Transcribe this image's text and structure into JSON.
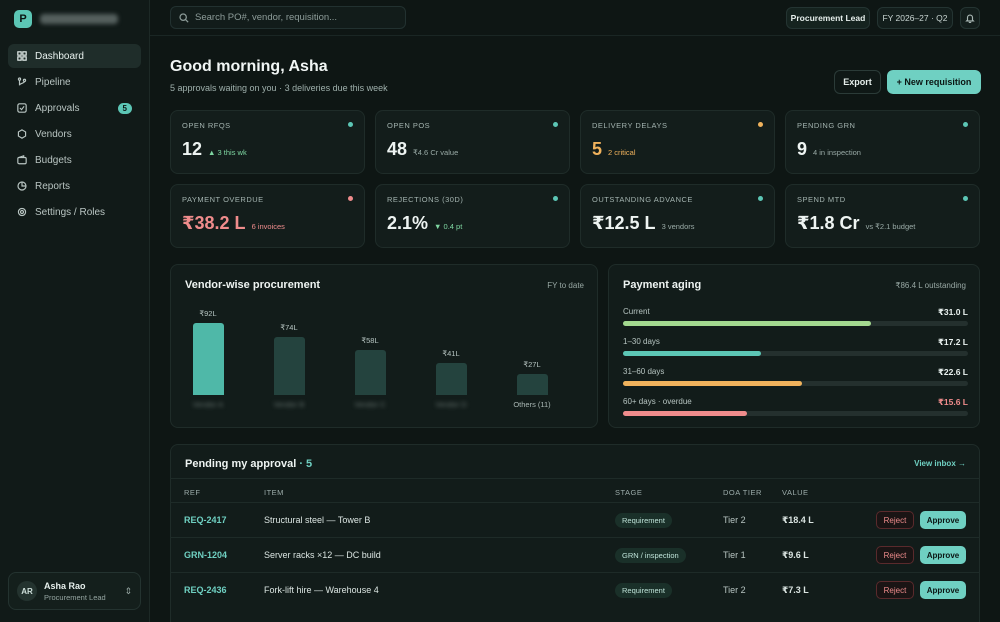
{
  "brand": {
    "logo_letter": "P",
    "name": "Procurement"
  },
  "sidebar": {
    "items": [
      {
        "label": "Dashboard",
        "icon": "grid-icon"
      },
      {
        "label": "Pipeline",
        "icon": "branch-icon"
      },
      {
        "label": "Approvals",
        "icon": "check-square-icon",
        "badge": "5"
      },
      {
        "label": "Vendors",
        "icon": "hexagon-icon"
      },
      {
        "label": "Budgets",
        "icon": "wallet-icon"
      },
      {
        "label": "Reports",
        "icon": "pie-chart-icon"
      },
      {
        "label": "Settings / Roles",
        "icon": "gear-icon"
      }
    ],
    "user": {
      "initials": "AR",
      "name": "Asha Rao",
      "role": "Procurement Lead"
    }
  },
  "topbar": {
    "search_placeholder": "Search PO#, vendor, requisition...",
    "role": "Procurement Lead",
    "fiscal_period": "FY 2026–27 · Q2"
  },
  "header": {
    "greeting": "Good morning, Asha",
    "subtitle": "5 approvals waiting on you · 3 deliveries due this week",
    "export_label": "Export",
    "new_label": "+ New requisition"
  },
  "kpis": [
    {
      "label": "OPEN RFQS",
      "value": "12",
      "sub": "▲ 3 this wk",
      "value_color": "#eef4f2",
      "sub_color": "#7fd7a2",
      "dot_color": "#5cc6b5"
    },
    {
      "label": "OPEN POS",
      "value": "48",
      "sub": "₹4.6 Cr value",
      "value_color": "#eef4f2",
      "sub_color": "#9aaba7",
      "dot_color": "#5cc6b5"
    },
    {
      "label": "DELIVERY DELAYS",
      "value": "5",
      "sub": "2 critical",
      "value_color": "#f0b25c",
      "sub_color": "#f0b25c",
      "dot_color": "#f0b25c"
    },
    {
      "label": "PENDING GRN",
      "value": "9",
      "sub": "4 in inspection",
      "value_color": "#eef4f2",
      "sub_color": "#9aaba7",
      "dot_color": "#5cc6b5"
    },
    {
      "label": "PAYMENT OVERDUE",
      "value": "₹38.2 L",
      "sub": "6 invoices",
      "value_color": "#ef8c8c",
      "sub_color": "#ef8c8c",
      "dot_color": "#ef8c8c"
    },
    {
      "label": "REJECTIONS (30D)",
      "value": "2.1%",
      "sub": "▼ 0.4 pt",
      "value_color": "#eef4f2",
      "sub_color": "#7fd7a2",
      "dot_color": "#5cc6b5"
    },
    {
      "label": "OUTSTANDING ADVANCE",
      "value": "₹12.5 L",
      "sub": "3 vendors",
      "value_color": "#eef4f2",
      "sub_color": "#9aaba7",
      "dot_color": "#5cc6b5"
    },
    {
      "label": "SPEND MTD",
      "value": "₹1.8 Cr",
      "sub": "vs ₹2.1 budget",
      "value_color": "#eef4f2",
      "sub_color": "#9aaba7",
      "dot_color": "#5cc6b5"
    }
  ],
  "vendor_panel": {
    "title": "Vendor-wise procurement",
    "meta": "FY to date"
  },
  "chart_data": {
    "type": "bar",
    "categories": [
      "Vendor A",
      "Vendor B",
      "Vendor C",
      "Vendor D",
      "Others (11)"
    ],
    "category_blurred": [
      true,
      true,
      true,
      true,
      false
    ],
    "values": [
      92,
      74,
      58,
      41,
      27
    ],
    "value_labels": [
      "₹92L",
      "₹74L",
      "₹58L",
      "₹41L",
      "₹27L"
    ],
    "ylim": [
      0,
      92
    ],
    "colors": [
      "#4fb8a8",
      "#24433e",
      "#24433e",
      "#24433e",
      "#24433e"
    ]
  },
  "aging_panel": {
    "title": "Payment aging",
    "meta": "₹86.4 L outstanding",
    "rows": [
      {
        "label": "Current",
        "value": "₹31.0 L",
        "fraction": 0.72,
        "color": "#a3d98f",
        "value_color": "#e9f1ef"
      },
      {
        "label": "1–30 days",
        "value": "₹17.2 L",
        "fraction": 0.4,
        "color": "#5cc6b5",
        "value_color": "#e9f1ef"
      },
      {
        "label": "31–60 days",
        "value": "₹22.6 L",
        "fraction": 0.52,
        "color": "#f0b25c",
        "value_color": "#e9f1ef"
      },
      {
        "label": "60+ days · overdue",
        "value": "₹15.6 L",
        "fraction": 0.36,
        "color": "#ef8c8c",
        "value_color": "#ef8c8c"
      }
    ]
  },
  "approvals": {
    "title": "Pending my approval",
    "count": "· 5",
    "view_inbox": "View inbox →",
    "columns": [
      "REF",
      "ITEM",
      "STAGE",
      "DOA TIER",
      "VALUE"
    ],
    "reject_label": "Reject",
    "approve_label": "Approve",
    "rows": [
      {
        "ref": "REQ-2417",
        "item": "Structural steel — Tower B",
        "stage": "Requirement",
        "tier": "Tier 2",
        "value": "₹18.4 L"
      },
      {
        "ref": "GRN-1204",
        "item": "Server racks ×12 — DC build",
        "stage": "GRN / inspection",
        "tier": "Tier 1",
        "value": "₹9.6 L"
      },
      {
        "ref": "REQ-2436",
        "item": "Fork-lift hire — Warehouse 4",
        "stage": "Requirement",
        "tier": "Tier 2",
        "value": "₹7.3 L"
      }
    ]
  }
}
